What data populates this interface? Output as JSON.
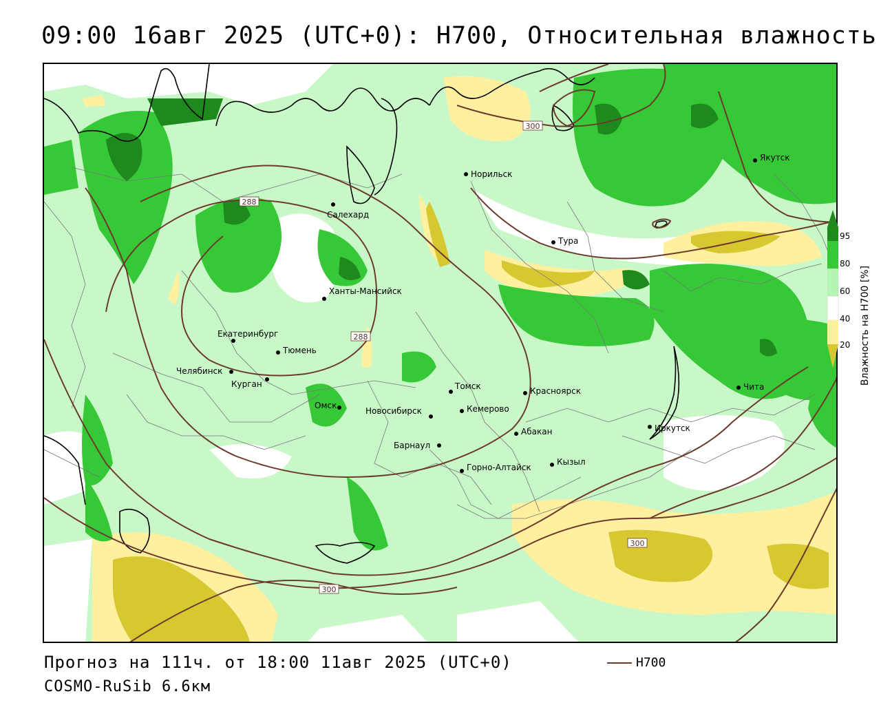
{
  "title": "09:00 16авг 2025 (UTC+0): H700, Относительная влажность",
  "footer": {
    "forecast": "Прогноз на 111ч. от 18:00 11авг 2025 (UTC+0)",
    "model": "COSMO-RuSib 6.6км",
    "contour_key_label": "H700"
  },
  "legend": {
    "title": "Влажность на H700 [%]",
    "ticks": [
      "95",
      "80",
      "60",
      "40",
      "20"
    ],
    "colors": {
      "very_wet": "#1e8a1e",
      "wet": "#37c837",
      "moist": "#b4f5b4",
      "neutral": "#ffffff",
      "dry": "#fff0a0",
      "very_dry": "#d7c832"
    }
  },
  "colors": {
    "contour": "#6b3a2c",
    "coast": "#000000",
    "borders": "#666666"
  },
  "contour_labels": [
    "288",
    "288",
    "300",
    "300",
    "300"
  ],
  "cities": [
    {
      "name": "Норильск"
    },
    {
      "name": "Якутск"
    },
    {
      "name": "Салехард"
    },
    {
      "name": "Тура"
    },
    {
      "name": "Ханты-Мансийск"
    },
    {
      "name": "Екатеринбург"
    },
    {
      "name": "Тюмень"
    },
    {
      "name": "Челябинск"
    },
    {
      "name": "Курган"
    },
    {
      "name": "Омск"
    },
    {
      "name": "Томск"
    },
    {
      "name": "Новосибирск"
    },
    {
      "name": "Кемерово"
    },
    {
      "name": "Красноярск"
    },
    {
      "name": "Абакан"
    },
    {
      "name": "Барнаул"
    },
    {
      "name": "Горно-Алтайск"
    },
    {
      "name": "Кызыл"
    },
    {
      "name": "Иркутск"
    },
    {
      "name": "Чита"
    }
  ]
}
